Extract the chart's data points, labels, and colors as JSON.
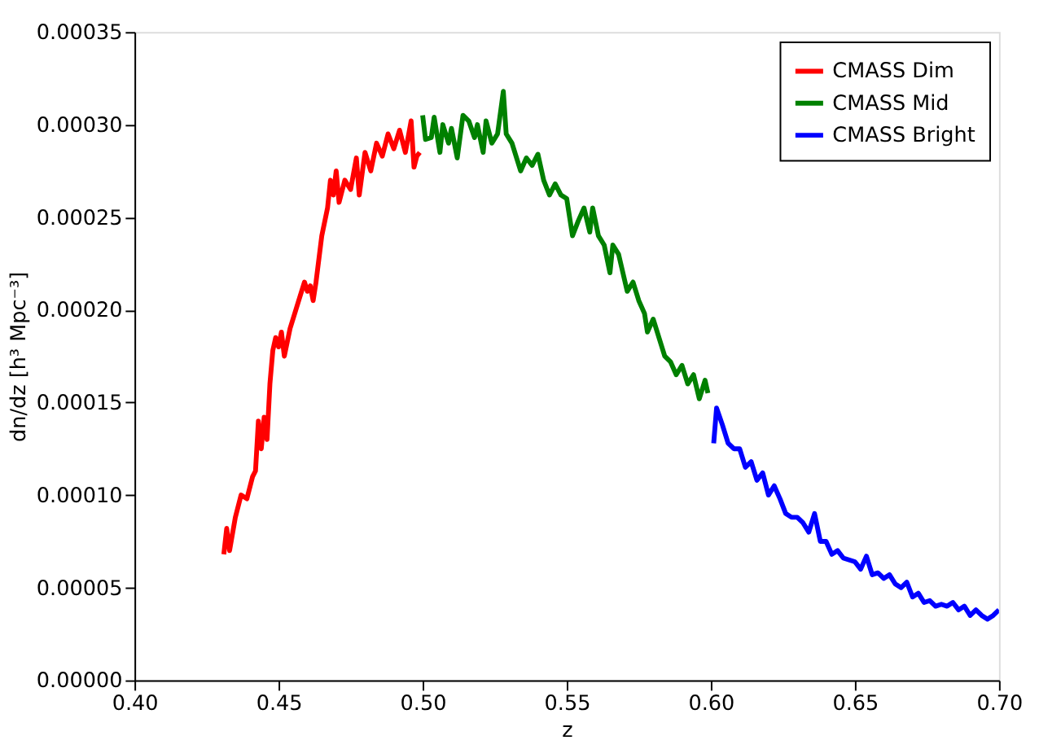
{
  "chart_data": {
    "type": "line",
    "xlabel": "z",
    "ylabel": "dn/dz [h³ Mpc⁻³]",
    "xlim": [
      0.4,
      0.7
    ],
    "xticks": [
      {
        "value": 0.4,
        "label": "0.40"
      },
      {
        "value": 0.45,
        "label": "0.45"
      },
      {
        "value": 0.5,
        "label": "0.50"
      },
      {
        "value": 0.55,
        "label": "0.55"
      },
      {
        "value": 0.6,
        "label": "0.60"
      },
      {
        "value": 0.65,
        "label": "0.65"
      },
      {
        "value": 0.7,
        "label": "0.70"
      }
    ],
    "ylim": [
      0,
      0.00035
    ],
    "yticks": [
      {
        "value": 0,
        "label": "0.00000"
      },
      {
        "value": 5e-05,
        "label": "0.00005"
      },
      {
        "value": 0.0001,
        "label": "0.00010"
      },
      {
        "value": 0.00015,
        "label": "0.00015"
      },
      {
        "value": 0.0002,
        "label": "0.00020"
      },
      {
        "value": 0.00025,
        "label": "0.00025"
      },
      {
        "value": 0.0003,
        "label": "0.00030"
      },
      {
        "value": 0.00035,
        "label": "0.00035"
      }
    ],
    "grid": false,
    "legend": "top right",
    "line_style": "solid",
    "series": [
      {
        "name": "CMASS Dim",
        "color": "#ff0000",
        "x": [
          0.431,
          0.432,
          0.433,
          0.435,
          0.437,
          0.439,
          0.441,
          0.442,
          0.443,
          0.444,
          0.445,
          0.446,
          0.447,
          0.448,
          0.449,
          0.45,
          0.451,
          0.452,
          0.454,
          0.456,
          0.457,
          0.459,
          0.46,
          0.461,
          0.462,
          0.463,
          0.465,
          0.467,
          0.468,
          0.469,
          0.47,
          0.471,
          0.473,
          0.475,
          0.477,
          0.478,
          0.48,
          0.482,
          0.484,
          0.486,
          0.488,
          0.49,
          0.492,
          0.494,
          0.496,
          0.497,
          0.498,
          0.499
        ],
        "values": [
          6.8e-05,
          8.2e-05,
          7e-05,
          8.8e-05,
          0.0001,
          9.8e-05,
          0.00011,
          0.000113,
          0.00014,
          0.000125,
          0.000142,
          0.00013,
          0.00016,
          0.000178,
          0.000185,
          0.00018,
          0.000188,
          0.000175,
          0.00019,
          0.0002,
          0.000205,
          0.000215,
          0.00021,
          0.000213,
          0.000205,
          0.000215,
          0.00024,
          0.000255,
          0.00027,
          0.000262,
          0.000275,
          0.000258,
          0.00027,
          0.000265,
          0.000282,
          0.000262,
          0.000285,
          0.000275,
          0.00029,
          0.000283,
          0.000295,
          0.000287,
          0.000297,
          0.000285,
          0.000302,
          0.000277,
          0.000283,
          0.000285
        ]
      },
      {
        "name": "CMASS Mid",
        "color": "#008000",
        "x": [
          0.5,
          0.501,
          0.503,
          0.504,
          0.506,
          0.507,
          0.509,
          0.51,
          0.512,
          0.514,
          0.516,
          0.518,
          0.519,
          0.521,
          0.522,
          0.524,
          0.526,
          0.528,
          0.529,
          0.531,
          0.534,
          0.536,
          0.538,
          0.54,
          0.542,
          0.544,
          0.546,
          0.548,
          0.55,
          0.552,
          0.554,
          0.556,
          0.558,
          0.559,
          0.561,
          0.563,
          0.565,
          0.566,
          0.568,
          0.571,
          0.573,
          0.575,
          0.577,
          0.578,
          0.58,
          0.582,
          0.584,
          0.586,
          0.588,
          0.59,
          0.592,
          0.594,
          0.596,
          0.598,
          0.599
        ],
        "values": [
          0.000305,
          0.000292,
          0.000293,
          0.000304,
          0.000285,
          0.0003,
          0.00029,
          0.000298,
          0.000282,
          0.000305,
          0.000302,
          0.000293,
          0.0003,
          0.000285,
          0.000302,
          0.00029,
          0.000295,
          0.000318,
          0.000295,
          0.00029,
          0.000275,
          0.000282,
          0.000278,
          0.000284,
          0.00027,
          0.000262,
          0.000268,
          0.000262,
          0.00026,
          0.00024,
          0.000248,
          0.000255,
          0.000242,
          0.000255,
          0.00024,
          0.000235,
          0.00022,
          0.000235,
          0.00023,
          0.00021,
          0.000215,
          0.000205,
          0.000198,
          0.000188,
          0.000195,
          0.000185,
          0.000175,
          0.000172,
          0.000165,
          0.00017,
          0.00016,
          0.000165,
          0.000152,
          0.000162,
          0.000155
        ]
      },
      {
        "name": "CMASS Bright",
        "color": "#0000ff",
        "x": [
          0.601,
          0.602,
          0.604,
          0.606,
          0.608,
          0.61,
          0.612,
          0.614,
          0.616,
          0.618,
          0.62,
          0.622,
          0.624,
          0.626,
          0.628,
          0.63,
          0.632,
          0.634,
          0.636,
          0.638,
          0.64,
          0.642,
          0.644,
          0.646,
          0.648,
          0.65,
          0.652,
          0.654,
          0.656,
          0.658,
          0.66,
          0.662,
          0.664,
          0.666,
          0.668,
          0.67,
          0.672,
          0.674,
          0.676,
          0.678,
          0.68,
          0.682,
          0.684,
          0.686,
          0.688,
          0.69,
          0.692,
          0.694,
          0.696,
          0.698,
          0.7
        ],
        "values": [
          0.000128,
          0.000147,
          0.000138,
          0.000128,
          0.000125,
          0.000125,
          0.000115,
          0.000118,
          0.000108,
          0.000112,
          0.0001,
          0.000105,
          9.8e-05,
          9e-05,
          8.8e-05,
          8.8e-05,
          8.5e-05,
          8e-05,
          9e-05,
          7.5e-05,
          7.5e-05,
          6.8e-05,
          7e-05,
          6.6e-05,
          6.5e-05,
          6.4e-05,
          6e-05,
          6.7e-05,
          5.7e-05,
          5.8e-05,
          5.5e-05,
          5.7e-05,
          5.2e-05,
          5e-05,
          5.3e-05,
          4.5e-05,
          4.7e-05,
          4.2e-05,
          4.3e-05,
          4e-05,
          4.1e-05,
          4e-05,
          4.2e-05,
          3.8e-05,
          4e-05,
          3.5e-05,
          3.8e-05,
          3.5e-05,
          3.3e-05,
          3.5e-05,
          3.8e-05
        ]
      }
    ]
  }
}
